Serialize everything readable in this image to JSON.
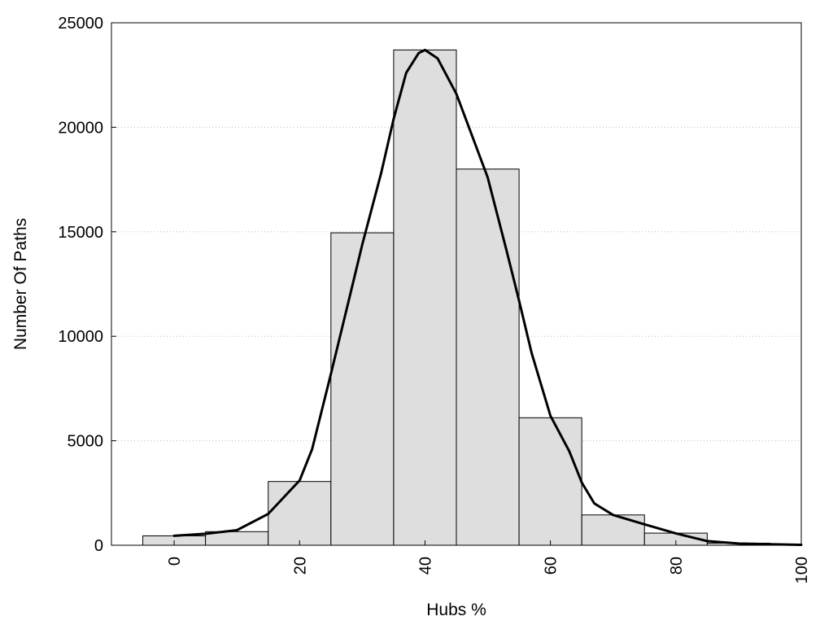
{
  "chart_data": {
    "type": "bar",
    "xlabel": "Hubs %",
    "ylabel": "Number Of Paths",
    "xlim": [
      -10,
      100
    ],
    "ylim": [
      0,
      25000
    ],
    "x_ticks": [
      0,
      20,
      40,
      60,
      80,
      100
    ],
    "y_ticks": [
      0,
      5000,
      10000,
      15000,
      20000,
      25000
    ],
    "grid": "horizontal dotted",
    "bar_color": "#dedede",
    "bin_width": 10,
    "bins": [
      {
        "x": 0,
        "value": 450
      },
      {
        "x": 10,
        "value": 650
      },
      {
        "x": 20,
        "value": 3050
      },
      {
        "x": 30,
        "value": 14950
      },
      {
        "x": 40,
        "value": 23700
      },
      {
        "x": 50,
        "value": 18000
      },
      {
        "x": 60,
        "value": 6100
      },
      {
        "x": 70,
        "value": 1450
      },
      {
        "x": 80,
        "value": 580
      },
      {
        "x": 90,
        "value": 100
      }
    ],
    "curve": {
      "type": "line",
      "color": "#000000",
      "points": [
        [
          0,
          450
        ],
        [
          5,
          550
        ],
        [
          10,
          720
        ],
        [
          15,
          1500
        ],
        [
          20,
          3100
        ],
        [
          22,
          4600
        ],
        [
          25,
          8200
        ],
        [
          28,
          11900
        ],
        [
          30,
          14400
        ],
        [
          33,
          17800
        ],
        [
          35,
          20400
        ],
        [
          37,
          22600
        ],
        [
          39,
          23550
        ],
        [
          40,
          23700
        ],
        [
          42,
          23300
        ],
        [
          45,
          21600
        ],
        [
          48,
          19200
        ],
        [
          50,
          17600
        ],
        [
          53,
          14100
        ],
        [
          55,
          11700
        ],
        [
          57,
          9200
        ],
        [
          60,
          6200
        ],
        [
          63,
          4500
        ],
        [
          65,
          3000
        ],
        [
          67,
          2000
        ],
        [
          70,
          1450
        ],
        [
          75,
          1000
        ],
        [
          80,
          570
        ],
        [
          85,
          200
        ],
        [
          90,
          80
        ],
        [
          95,
          50
        ],
        [
          100,
          20
        ]
      ]
    }
  }
}
